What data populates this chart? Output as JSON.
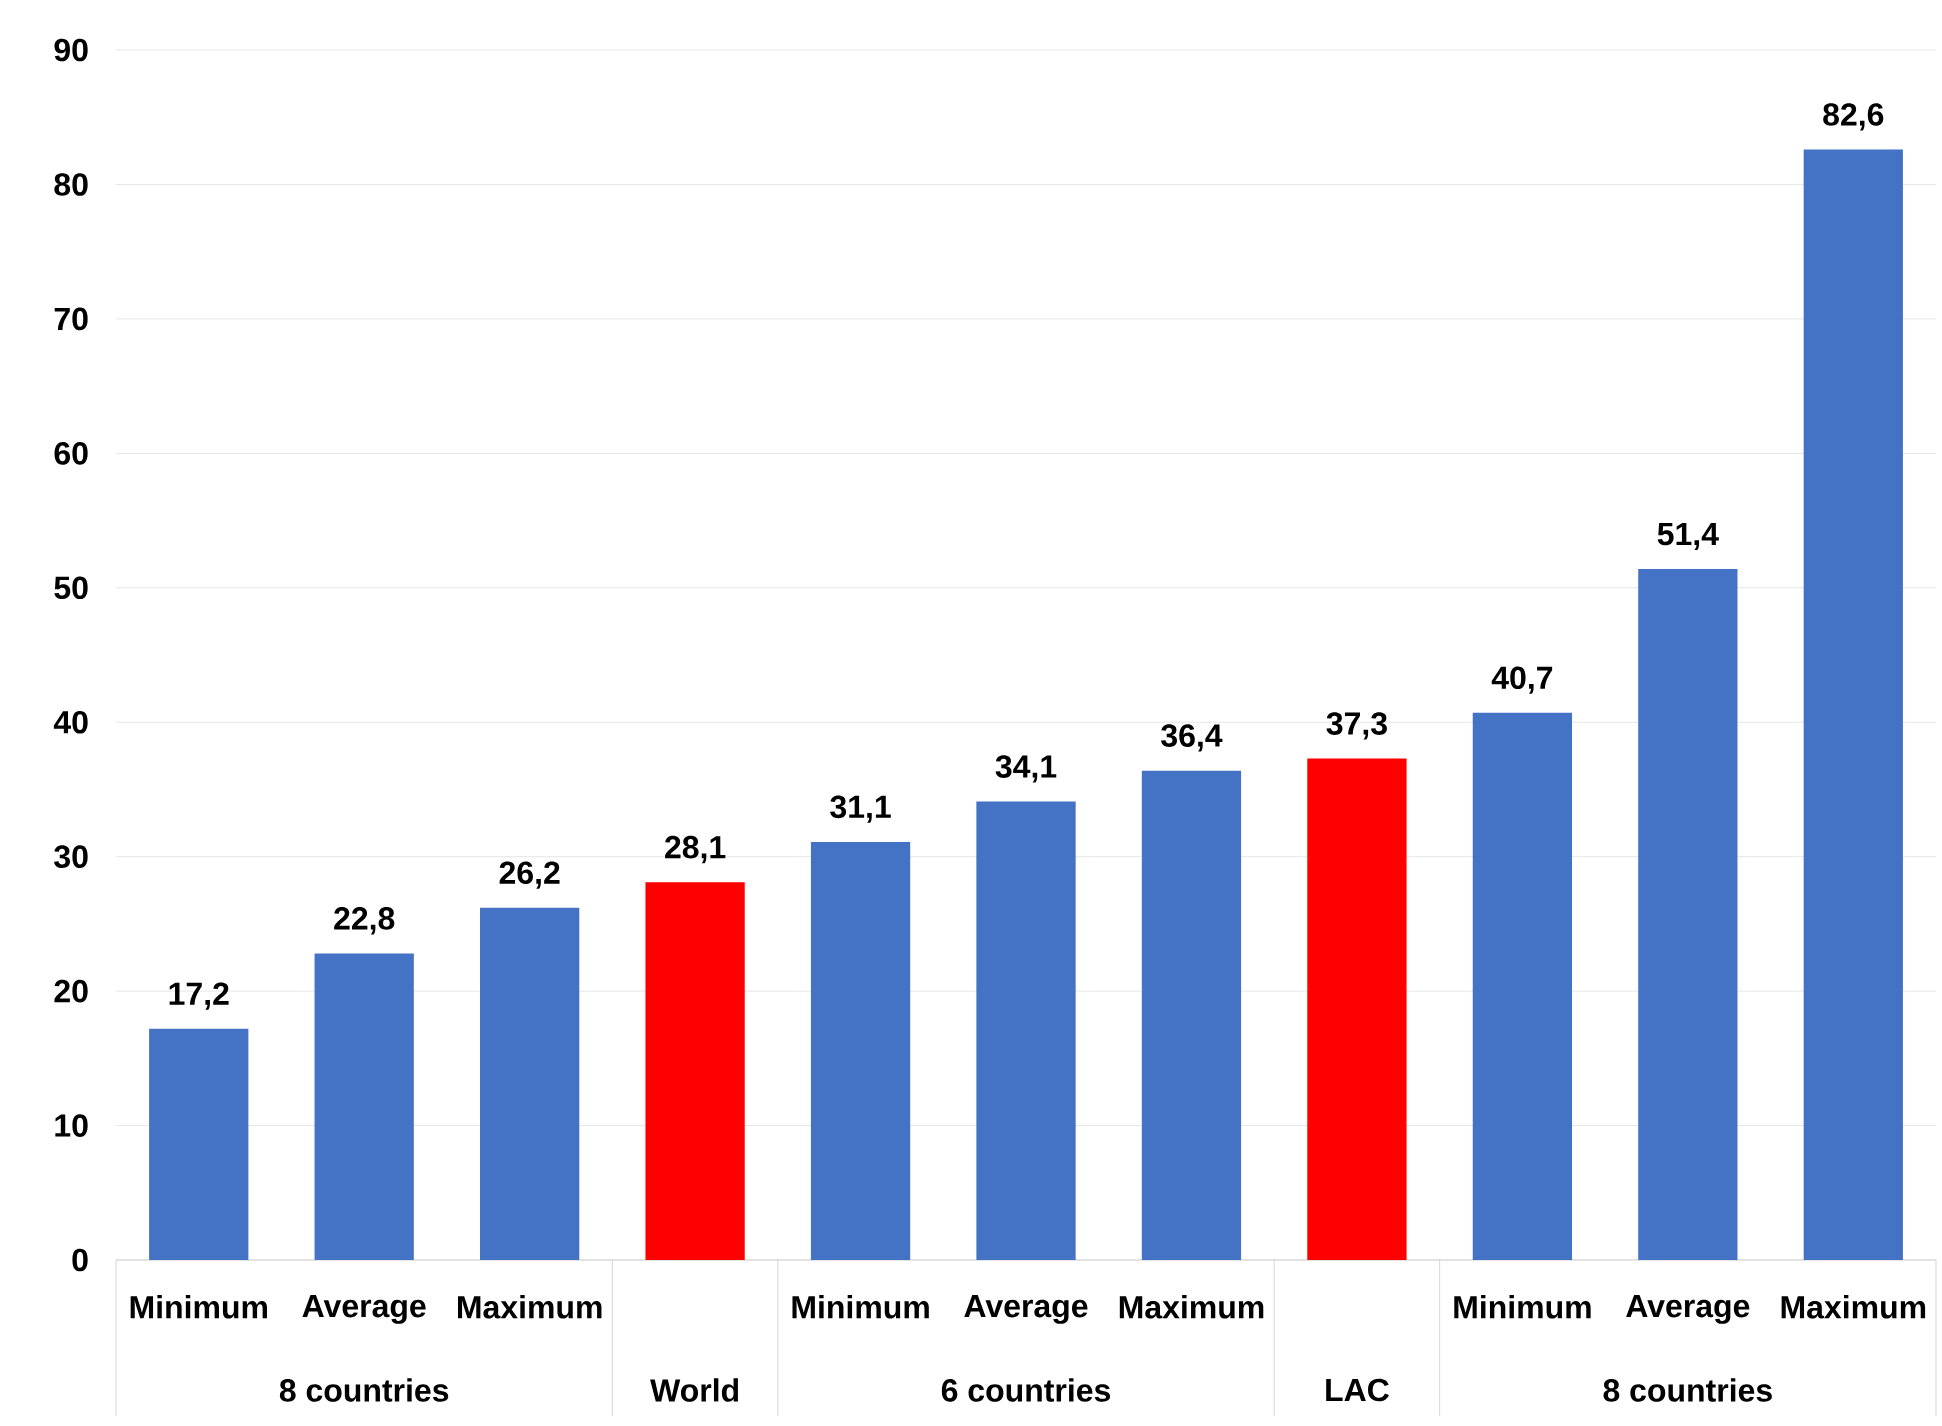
{
  "chart_data": {
    "type": "bar",
    "categories": [
      "Minimum",
      "Average",
      "Maximum",
      null,
      "Minimum",
      "Average",
      "Maximum",
      null,
      "Minimum",
      "Average",
      "Maximum"
    ],
    "values": [
      17.2,
      22.8,
      26.2,
      28.1,
      31.1,
      34.1,
      36.4,
      37.3,
      40.7,
      51.4,
      82.6
    ],
    "colors": [
      "#4472c4",
      "#4472c4",
      "#4472c4",
      "#ff0000",
      "#4472c4",
      "#4472c4",
      "#4472c4",
      "#ff0000",
      "#4472c4",
      "#4472c4",
      "#4472c4"
    ],
    "value_labels": [
      "17,2",
      "22,8",
      "26,2",
      "28,1",
      "31,1",
      "34,1",
      "36,4",
      "37,3",
      "40,7",
      "51,4",
      "82,6"
    ],
    "annotations": [
      "8 countries",
      "World",
      "6 countries",
      "LAC",
      "8 countries"
    ],
    "ylim": [
      0,
      90
    ],
    "yticks": [
      0,
      10,
      20,
      30,
      40,
      50,
      60,
      70,
      80,
      90
    ],
    "grid": "y"
  }
}
